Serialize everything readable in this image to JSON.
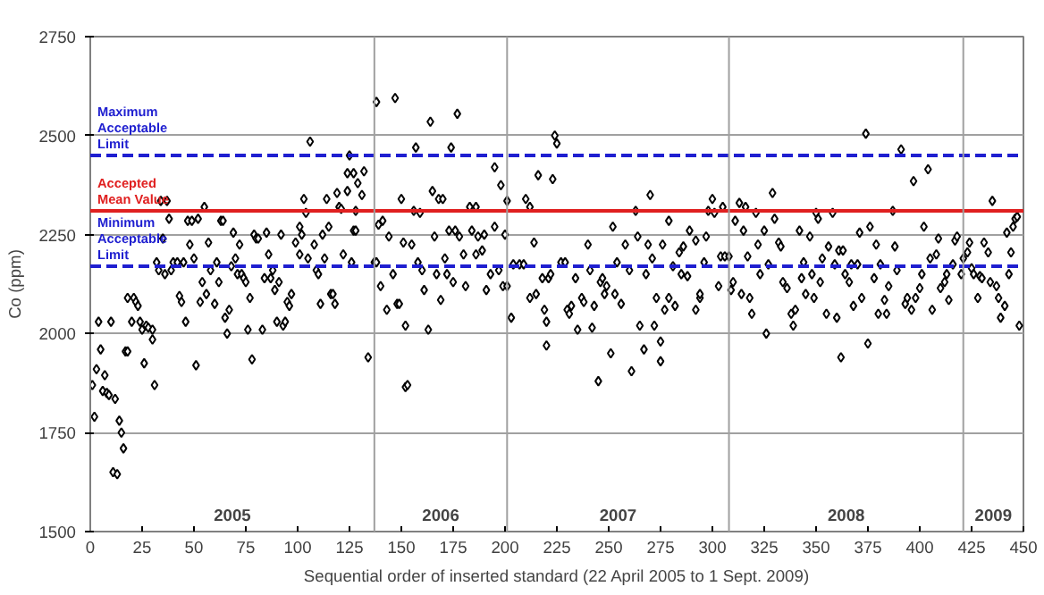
{
  "chart_data": {
    "type": "scatter",
    "xlabel": "Sequential order of inserted standard (22 April 2005 to 1 Sept. 2009)",
    "ylabel": "Co (ppm)",
    "xlim": [
      0,
      450
    ],
    "xticks": [
      0,
      25,
      50,
      75,
      100,
      125,
      150,
      175,
      200,
      225,
      250,
      275,
      300,
      325,
      350,
      375,
      400,
      425,
      450
    ],
    "ylim": [
      1500,
      2750
    ],
    "yticks": [
      1500,
      1750,
      2000,
      2250,
      2500,
      2750
    ],
    "grid": "y",
    "marker": "diamond",
    "ref_lines": [
      {
        "axis": "y",
        "value": 2450,
        "label": "Maximum\nAcceptable\nLimit",
        "color": "#1f1fd0",
        "line_style": "dashed"
      },
      {
        "axis": "y",
        "value": 2310,
        "label": "Accepted\nMean Value",
        "color": "#e02020",
        "line_style": "solid"
      },
      {
        "axis": "y",
        "value": 2170,
        "label": "Minimum\nAcceptable\nLimit",
        "color": "#1f1fd0",
        "line_style": "dashed"
      },
      {
        "axis": "x",
        "value": 137,
        "color": "#a0a0a0",
        "line_style": "solid"
      },
      {
        "axis": "x",
        "value": 201,
        "color": "#a0a0a0",
        "line_style": "solid"
      },
      {
        "axis": "x",
        "value": 308,
        "color": "#a0a0a0",
        "line_style": "solid"
      },
      {
        "axis": "x",
        "value": 421,
        "color": "#a0a0a0",
        "line_style": "solid"
      }
    ],
    "annotations": [
      "2005",
      "2006",
      "2007",
      "2008",
      "2009"
    ],
    "series": [
      {
        "color": "#000000",
        "x": [
          1,
          2,
          3,
          4,
          5,
          6,
          7,
          8,
          9,
          10,
          11,
          12,
          13,
          14,
          15,
          16,
          17,
          18,
          18,
          20,
          21,
          22,
          23,
          24,
          25,
          26,
          27,
          28,
          30,
          30,
          31,
          32,
          33,
          34,
          35,
          36,
          37,
          38,
          39,
          40,
          42,
          43,
          44,
          45,
          46,
          47,
          48,
          49,
          50,
          51,
          52,
          53,
          54,
          55,
          56,
          57,
          58,
          60,
          61,
          62,
          63,
          64,
          65,
          66,
          67,
          68,
          69,
          70,
          71,
          72,
          73,
          74,
          75,
          76,
          77,
          78,
          79,
          80,
          81,
          83,
          84,
          85,
          86,
          87,
          88,
          89,
          90,
          91,
          92,
          93,
          94,
          95,
          96,
          97,
          99,
          101,
          101,
          102,
          103,
          104,
          105,
          106,
          108,
          109,
          110,
          111,
          112,
          113,
          114,
          115,
          116,
          117,
          118,
          119,
          120,
          121,
          122,
          124,
          124,
          125,
          126,
          127,
          128,
          127,
          129,
          131,
          132,
          128,
          134,
          137,
          138,
          138,
          139,
          140,
          141,
          143,
          144,
          146,
          147,
          148,
          149,
          150,
          151,
          152,
          152,
          153,
          155,
          156,
          157,
          158,
          159,
          160,
          161,
          163,
          164,
          165,
          166,
          167,
          168,
          169,
          170,
          171,
          172,
          173,
          174,
          175,
          176,
          177,
          178,
          180,
          181,
          183,
          184,
          186,
          186,
          187,
          189,
          190,
          191,
          193,
          195,
          195,
          197,
          198,
          199,
          200,
          201,
          201,
          203,
          204,
          207,
          209,
          210,
          212,
          212,
          214,
          215,
          216,
          218,
          219,
          220,
          220,
          221,
          222,
          223,
          224,
          225,
          227,
          229,
          230,
          231,
          232,
          234,
          235,
          237,
          238,
          240,
          241,
          242,
          243,
          245,
          246,
          247,
          248,
          249,
          251,
          252,
          253,
          254,
          256,
          258,
          260,
          261,
          263,
          264,
          265,
          267,
          268,
          269,
          270,
          271,
          272,
          273,
          275,
          275,
          276,
          277,
          279,
          279,
          281,
          282,
          284,
          285,
          286,
          288,
          289,
          292,
          294,
          292,
          294,
          296,
          297,
          298,
          300,
          301,
          303,
          304,
          305,
          306,
          308,
          309,
          310,
          311,
          313,
          314,
          315,
          316,
          317,
          318,
          319,
          321,
          322,
          323,
          325,
          326,
          327,
          329,
          330,
          332,
          333,
          334,
          336,
          338,
          339,
          340,
          342,
          343,
          344,
          345,
          347,
          348,
          349,
          350,
          351,
          352,
          353,
          355,
          356,
          358,
          359,
          360,
          361,
          362,
          363,
          364,
          366,
          367,
          368,
          370,
          371,
          372,
          374,
          375,
          376,
          378,
          379,
          380,
          381,
          383,
          384,
          385,
          387,
          388,
          389,
          391,
          393,
          394,
          396,
          397,
          398,
          400,
          401,
          402,
          404,
          405,
          406,
          408,
          409,
          410,
          412,
          413,
          414,
          416,
          417,
          418,
          420,
          421,
          423,
          424,
          425,
          426,
          428,
          429,
          430,
          431,
          433,
          434,
          435,
          437,
          438,
          439,
          441,
          442,
          443,
          444,
          445,
          446,
          447,
          448
        ],
        "values": [
          1870,
          1790,
          1910,
          2030,
          1960,
          1855,
          1895,
          1850,
          1845,
          2030,
          1650,
          1835,
          1645,
          1780,
          1750,
          1710,
          1955,
          1955,
          2090,
          2030,
          2090,
          2080,
          2070,
          2030,
          2010,
          1925,
          2020,
          2015,
          2010,
          1985,
          1870,
          2180,
          2160,
          2335,
          2240,
          2150,
          2335,
          2290,
          2160,
          2180,
          2180,
          2095,
          2080,
          2180,
          2030,
          2285,
          2225,
          2285,
          2190,
          1920,
          2290,
          2080,
          2130,
          2320,
          2100,
          2230,
          2160,
          2075,
          2180,
          2130,
          2285,
          2285,
          2040,
          2000,
          2060,
          2170,
          2255,
          2190,
          2150,
          2225,
          2150,
          2140,
          2130,
          2010,
          2090,
          1935,
          2250,
          2240,
          2240,
          2010,
          2140,
          2255,
          2200,
          2140,
          2160,
          2110,
          2030,
          2130,
          2250,
          2020,
          2030,
          2080,
          2070,
          2100,
          2230,
          2200,
          2270,
          2250,
          2340,
          2305,
          2190,
          2485,
          2225,
          2160,
          2150,
          2075,
          2250,
          2190,
          2340,
          2270,
          2100,
          2100,
          2075,
          2355,
          2320,
          2315,
          2200,
          2360,
          2405,
          2450,
          2180,
          2260,
          2310,
          2405,
          2380,
          2350,
          2410,
          2260,
          1940,
          2180,
          2585,
          2180,
          2275,
          2120,
          2285,
          2060,
          2245,
          2150,
          2595,
          2075,
          2075,
          2340,
          2230,
          2020,
          1865,
          1870,
          2225,
          2310,
          2470,
          2180,
          2305,
          2160,
          2110,
          2010,
          2535,
          2360,
          2245,
          2150,
          2340,
          2085,
          2340,
          2190,
          2150,
          2260,
          2470,
          2130,
          2260,
          2555,
          2245,
          2200,
          2120,
          2320,
          2260,
          2320,
          2200,
          2245,
          2210,
          2250,
          2110,
          2150,
          2270,
          2420,
          2160,
          2375,
          2120,
          2250,
          2335,
          2120,
          2040,
          2175,
          2175,
          2175,
          2340,
          2320,
          2090,
          2230,
          2100,
          2400,
          2140,
          2060,
          2030,
          1970,
          2140,
          2150,
          2390,
          2500,
          2480,
          2180,
          2180,
          2060,
          2050,
          2070,
          2140,
          2010,
          2090,
          2080,
          2225,
          2160,
          2015,
          2070,
          1880,
          2130,
          2140,
          2100,
          2120,
          1950,
          2270,
          2100,
          2180,
          2075,
          2225,
          2160,
          1905,
          2310,
          2245,
          2020,
          1960,
          2150,
          2225,
          2350,
          2190,
          2020,
          2090,
          1980,
          1930,
          2225,
          2060,
          2285,
          2090,
          2170,
          2070,
          2205,
          2150,
          2220,
          2145,
          2260,
          2235,
          2090,
          2060,
          2100,
          2180,
          2245,
          2310,
          2340,
          2305,
          2120,
          2195,
          2320,
          2195,
          2195,
          2110,
          2130,
          2285,
          2330,
          2100,
          2260,
          2320,
          2195,
          2090,
          2050,
          2305,
          2225,
          2150,
          2260,
          2000,
          2175,
          2355,
          2290,
          2230,
          2220,
          2130,
          2115,
          2050,
          2020,
          2060,
          2260,
          2140,
          2180,
          2100,
          2245,
          2150,
          2090,
          2305,
          2290,
          2130,
          2190,
          2050,
          2220,
          2305,
          2175,
          2040,
          2210,
          1940,
          2210,
          2150,
          2130,
          2175,
          2070,
          2175,
          2255,
          2090,
          2505,
          1975,
          2270,
          2140,
          2225,
          2050,
          2175,
          2085,
          2050,
          2120,
          2310,
          2220,
          2160,
          2465,
          2075,
          2090,
          2060,
          2385,
          2090,
          2115,
          2150,
          2270,
          2415,
          2190,
          2060,
          2200,
          2240,
          2115,
          2130,
          2150,
          2085,
          2175,
          2235,
          2245,
          2150,
          2190,
          2205,
          2230,
          2165,
          2150,
          2090,
          2145,
          2140,
          2230,
          2205,
          2130,
          2335,
          2120,
          2090,
          2040,
          2070,
          2255,
          2150,
          2205,
          2270,
          2290,
          2295,
          2020
        ]
      }
    ]
  }
}
